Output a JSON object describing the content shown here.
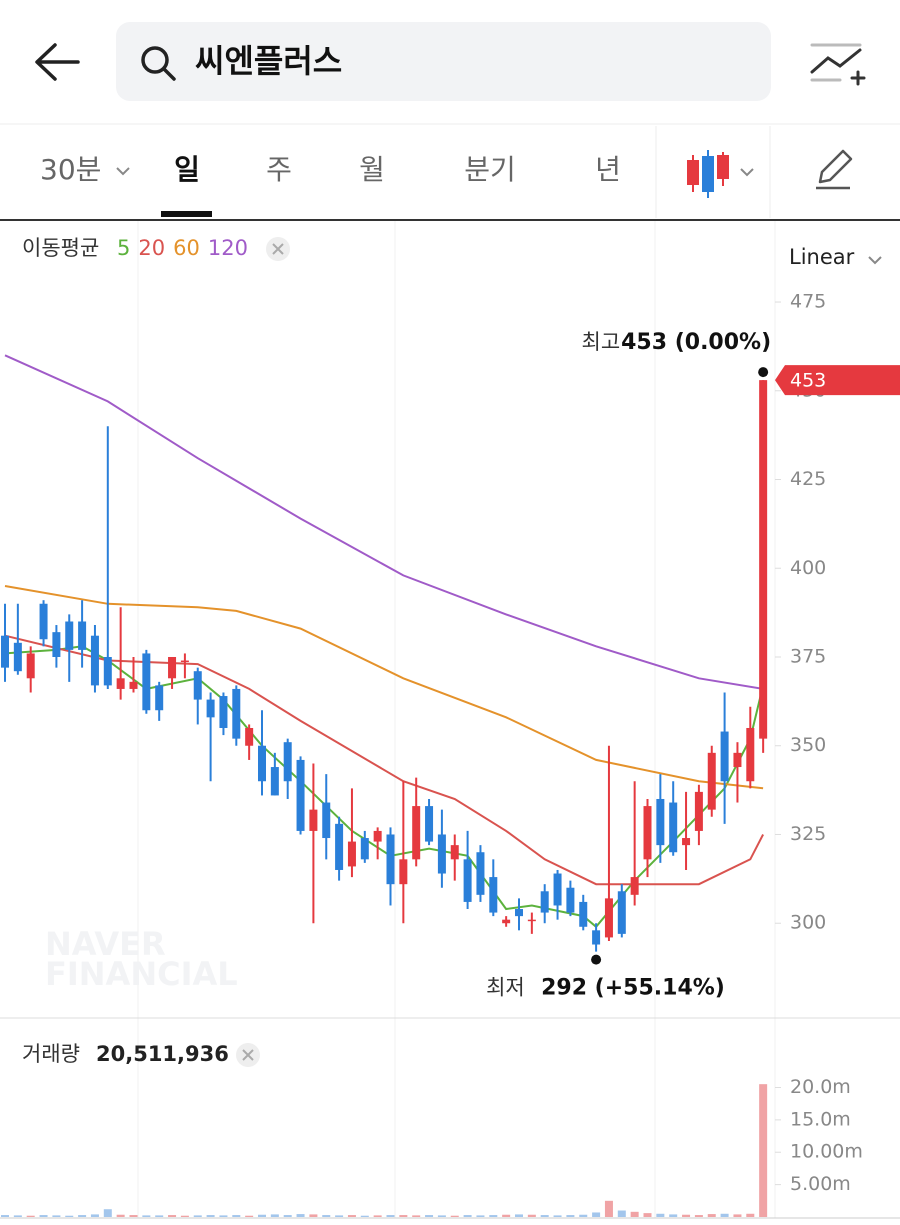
{
  "header": {
    "search": "씨엔플러스"
  },
  "tabs": [
    "30분",
    "일",
    "주",
    "월",
    "분기",
    "년"
  ],
  "scale_mode": "Linear",
  "ma_label": "이동평균",
  "volume_label": "거래량",
  "volume_total": "20,511,936",
  "watermark": [
    "NAVER",
    "FINANCIAL"
  ],
  "chart_data": [
    {
      "type": "candlestick",
      "up_color": "#e5393f",
      "down_color": "#2a7fd9",
      "open": [
        381,
        379,
        369,
        390,
        382,
        385,
        385,
        381,
        375,
        366,
        366,
        376,
        367,
        369,
        374,
        371,
        363,
        364,
        366,
        350,
        350,
        344,
        351,
        346,
        326,
        334,
        328,
        316,
        324,
        323,
        325,
        311,
        318,
        333,
        325,
        318,
        318,
        320,
        313,
        300,
        304,
        301,
        309,
        314,
        310,
        306,
        298,
        296,
        309,
        308,
        318,
        335,
        334,
        322,
        326,
        332,
        354,
        344,
        340,
        352
      ],
      "high": [
        390,
        390,
        378,
        391,
        384,
        387,
        391,
        384,
        440,
        389,
        375,
        377,
        368,
        375,
        376,
        372,
        365,
        365,
        367,
        356,
        360,
        348,
        352,
        347,
        345,
        342,
        330,
        338,
        326,
        327,
        327,
        340,
        341,
        335,
        332,
        325,
        326,
        322,
        318,
        302,
        307,
        303,
        311,
        315,
        312,
        308,
        300,
        350,
        311,
        340,
        335,
        342,
        340,
        337,
        339,
        350,
        365,
        351,
        361,
        453
      ],
      "low": [
        368,
        370,
        365,
        378,
        372,
        368,
        372,
        365,
        366,
        363,
        365,
        359,
        357,
        366,
        369,
        356,
        340,
        353,
        350,
        346,
        336,
        336,
        335,
        325,
        300,
        318,
        312,
        313,
        317,
        318,
        305,
        300,
        316,
        322,
        310,
        312,
        304,
        306,
        302,
        299,
        298,
        297,
        300,
        301,
        302,
        298,
        292,
        295,
        296,
        305,
        313,
        317,
        319,
        315,
        322,
        330,
        328,
        334,
        338,
        348
      ],
      "close": [
        372,
        371,
        376,
        380,
        375,
        377,
        377,
        367,
        367,
        369,
        368,
        360,
        360,
        375,
        374,
        363,
        358,
        355,
        352,
        355,
        340,
        336,
        340,
        326,
        332,
        324,
        315,
        323,
        318,
        326,
        311,
        318,
        333,
        323,
        314,
        322,
        306,
        308,
        303,
        301,
        302,
        301,
        303,
        305,
        303,
        299,
        294,
        307,
        297,
        313,
        333,
        322,
        320,
        324,
        337,
        348,
        340,
        348,
        355,
        453
      ],
      "series": [
        {
          "name": "5",
          "color": "#5cb23d",
          "x": [
            0,
            4,
            6,
            8,
            11,
            15,
            17,
            20,
            23,
            27,
            30,
            33,
            36,
            39,
            41,
            45,
            46,
            49,
            52,
            56,
            58,
            59
          ],
          "values": [
            376,
            377,
            378,
            374,
            366,
            369,
            363,
            350,
            340,
            326,
            319,
            321,
            319,
            304,
            305,
            302,
            299,
            312,
            323,
            338,
            352,
            367
          ]
        },
        {
          "name": "20",
          "color": "#d9534f",
          "x": [
            0,
            8,
            15,
            19,
            23,
            31,
            35,
            39,
            42,
            46,
            50,
            54,
            58,
            59
          ],
          "values": [
            381,
            374,
            373,
            366,
            357,
            340,
            335,
            326,
            318,
            311,
            311,
            311,
            318,
            325
          ]
        },
        {
          "name": "60",
          "color": "#e4922b",
          "x": [
            0,
            8,
            15,
            18,
            23,
            31,
            39,
            46,
            54,
            59
          ],
          "values": [
            395,
            390,
            389,
            388,
            383,
            369,
            358,
            346,
            340,
            338
          ]
        },
        {
          "name": "120",
          "color": "#a05bc8",
          "x": [
            0,
            8,
            15,
            23,
            31,
            39,
            46,
            54,
            59
          ],
          "values": [
            460,
            447,
            431,
            414,
            398,
            387,
            378,
            369,
            366
          ]
        }
      ],
      "ylim": [
        273.3,
        496.7
      ],
      "yticks": [
        300,
        325,
        350,
        375,
        400,
        425,
        450,
        475
      ],
      "annotations": [
        {
          "label": "최고",
          "text": "453 (0.00%)",
          "index": 59
        },
        {
          "label": "최저",
          "text": "292 (+55.14%)",
          "index": 46
        }
      ]
    },
    {
      "type": "bar",
      "values": [
        300000,
        250000,
        200000,
        300000,
        250000,
        200000,
        300000,
        400000,
        1200000,
        350000,
        300000,
        250000,
        250000,
        300000,
        200000,
        250000,
        300000,
        250000,
        300000,
        200000,
        350000,
        400000,
        300000,
        450000,
        400000,
        300000,
        250000,
        300000,
        200000,
        250000,
        300000,
        300000,
        250000,
        300000,
        250000,
        200000,
        300000,
        250000,
        300000,
        350000,
        400000,
        350000,
        300000,
        250000,
        300000,
        350000,
        700000,
        2500000,
        1000000,
        800000,
        600000,
        500000,
        400000,
        350000,
        300000,
        450000,
        500000,
        400000,
        500000,
        20511936
      ],
      "ylim": [
        0,
        22700000
      ],
      "yticks": [
        {
          "value": 5000000,
          "label": "5.00m"
        },
        {
          "value": 10000000,
          "label": "10.00m"
        },
        {
          "value": 15000000,
          "label": "15.0m"
        },
        {
          "value": 20000000,
          "label": "20.0m"
        }
      ]
    }
  ]
}
